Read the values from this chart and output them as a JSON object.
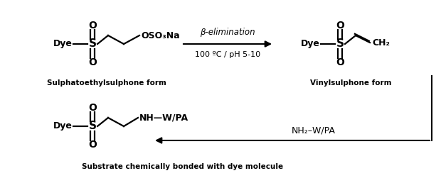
{
  "bg_color": "#ffffff",
  "figsize": [
    6.2,
    2.58
  ],
  "dpi": 100,
  "sulph_label": "Sulphatoethylsulphone form",
  "vinyl_label": "Vinylsulphone form",
  "substrate_label": "Substrate chemically bonded with dye molecule",
  "arrow1_label_top": "β-elimination",
  "arrow1_label_bot": "100 ºC / pH 5-10",
  "arrow2_label": "NH₂–W/PA"
}
